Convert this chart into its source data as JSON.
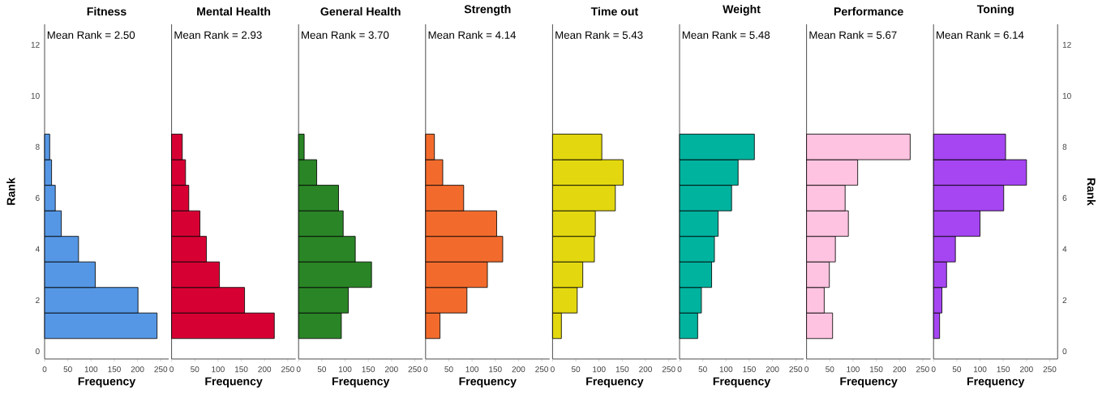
{
  "chart_data": [
    {
      "type": "histogram",
      "orientation": "horizontal",
      "title": "Fitness",
      "annotations": [
        "Mean Rank = 2.50"
      ],
      "xlabel": "Frequency",
      "ylabel": "Rank",
      "color": "#5597e5",
      "bins": [
        0.5,
        1.5,
        2.5,
        3.5,
        4.5,
        5.5,
        6.5,
        7.5,
        8.5
      ],
      "values": [
        242,
        201,
        109,
        73,
        36,
        23,
        15,
        11
      ],
      "xlim": [
        0,
        267
      ],
      "xticks": [
        0,
        50,
        100,
        150,
        200,
        250
      ],
      "ylim": [
        -0.3,
        12.8
      ],
      "yticks": [
        0,
        2,
        4,
        6,
        8,
        10,
        12
      ]
    },
    {
      "type": "histogram",
      "orientation": "horizontal",
      "title": "Mental Health",
      "annotations": [
        "Mean Rank = 2.93"
      ],
      "xlabel": "Frequency",
      "color": "#d70033",
      "bins": [
        0.5,
        1.5,
        2.5,
        3.5,
        4.5,
        5.5,
        6.5,
        7.5,
        8.5
      ],
      "values": [
        221,
        157,
        103,
        75,
        61,
        37,
        30,
        23
      ],
      "xlim": [
        0,
        267
      ],
      "xticks": [
        0,
        50,
        100,
        150,
        200,
        250
      ],
      "ylim": [
        -0.3,
        12.8
      ],
      "tick_labels": "x"
    },
    {
      "type": "histogram",
      "orientation": "horizontal",
      "title": "General Health",
      "annotations": [
        "Mean Rank = 3.70"
      ],
      "xlabel": "Frequency",
      "color": "#2a8526",
      "bins": [
        0.5,
        1.5,
        2.5,
        3.5,
        4.5,
        5.5,
        6.5,
        7.5,
        8.5
      ],
      "values": [
        92,
        107,
        157,
        122,
        96,
        86,
        39,
        12
      ],
      "xlim": [
        0,
        267
      ],
      "xticks": [
        0,
        50,
        100,
        150,
        200,
        250
      ],
      "ylim": [
        -0.3,
        12.8
      ],
      "tick_labels": "x"
    },
    {
      "type": "histogram",
      "orientation": "horizontal",
      "title": "Strength",
      "annotations": [
        "Mean Rank = 4.14"
      ],
      "xlabel": "Frequency",
      "color": "#f26b2d",
      "bins": [
        0.5,
        1.5,
        2.5,
        3.5,
        4.5,
        5.5,
        6.5,
        7.5,
        8.5
      ],
      "values": [
        31,
        89,
        133,
        166,
        153,
        82,
        37,
        19
      ],
      "xlim": [
        0,
        267
      ],
      "xticks": [
        0,
        50,
        100,
        150,
        200,
        250
      ],
      "ylim": [
        -0.3,
        12.8
      ],
      "tick_labels": "x"
    },
    {
      "type": "histogram",
      "orientation": "horizontal",
      "title": "Time out",
      "annotations": [
        "Mean Rank = 5.43"
      ],
      "xlabel": "Frequency",
      "color": "#e3d80f",
      "bins": [
        0.5,
        1.5,
        2.5,
        3.5,
        4.5,
        5.5,
        6.5,
        7.5,
        8.5
      ],
      "values": [
        19,
        53,
        65,
        90,
        92,
        135,
        152,
        106
      ],
      "xlim": [
        0,
        267
      ],
      "xticks": [
        0,
        50,
        100,
        150,
        200,
        250
      ],
      "ylim": [
        -0.3,
        12.8
      ],
      "tick_labels": "x"
    },
    {
      "type": "histogram",
      "orientation": "horizontal",
      "title": "Weight",
      "annotations": [
        "Mean Rank = 5.48"
      ],
      "xlabel": "Frequency",
      "color": "#00b39f",
      "bins": [
        0.5,
        1.5,
        2.5,
        3.5,
        4.5,
        5.5,
        6.5,
        7.5,
        8.5
      ],
      "values": [
        39,
        47,
        69,
        75,
        83,
        112,
        126,
        161
      ],
      "xlim": [
        0,
        267
      ],
      "xticks": [
        0,
        50,
        100,
        150,
        200,
        250
      ],
      "ylim": [
        -0.3,
        12.8
      ],
      "tick_labels": "x"
    },
    {
      "type": "histogram",
      "orientation": "horizontal",
      "title": "Performance",
      "annotations": [
        "Mean Rank = 5.67"
      ],
      "xlabel": "Frequency",
      "color": "#fec3e0",
      "bins": [
        0.5,
        1.5,
        2.5,
        3.5,
        4.5,
        5.5,
        6.5,
        7.5,
        8.5
      ],
      "values": [
        56,
        38,
        49,
        62,
        90,
        83,
        110,
        223
      ],
      "xlim": [
        0,
        267
      ],
      "xticks": [
        0,
        50,
        100,
        150,
        200,
        250
      ],
      "ylim": [
        -0.3,
        12.8
      ],
      "tick_labels": "x"
    },
    {
      "type": "histogram",
      "orientation": "horizontal",
      "title": "Toning",
      "annotations": [
        "Mean Rank = 6.14"
      ],
      "xlabel": "Frequency",
      "ylabel": "Rank",
      "color": "#a646f2",
      "bins": [
        0.5,
        1.5,
        2.5,
        3.5,
        4.5,
        5.5,
        6.5,
        7.5,
        8.5
      ],
      "values": [
        13,
        18,
        28,
        47,
        100,
        151,
        200,
        155
      ],
      "xlim": [
        0,
        267
      ],
      "xticks": [
        0,
        50,
        100,
        150,
        200,
        250
      ],
      "ylim": [
        -0.3,
        12.8
      ],
      "yticks": [
        0,
        2,
        4,
        6,
        8,
        10,
        12
      ]
    }
  ]
}
